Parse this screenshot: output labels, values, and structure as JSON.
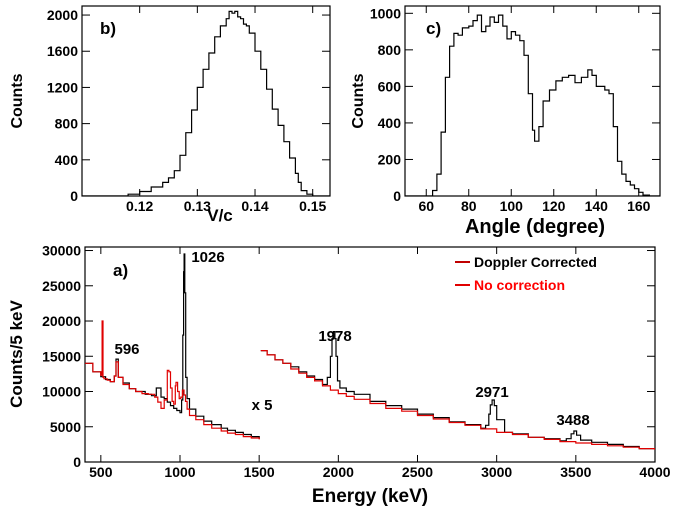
{
  "chart_data": [
    {
      "panel": "b)",
      "type": "line",
      "xlabel": "V/c",
      "ylabel": "Counts",
      "xlim": [
        0.11,
        0.153
      ],
      "ylim": [
        0,
        2100
      ],
      "xticks": [
        "0.12",
        "0.13",
        "0.14",
        "0.15"
      ],
      "yticks": [
        "0",
        "400",
        "800",
        "1200",
        "1600",
        "2000"
      ],
      "series": [
        {
          "color": "#000000",
          "x": [
            0.11,
            0.116,
            0.118,
            0.12,
            0.122,
            0.124,
            0.125,
            0.126,
            0.127,
            0.128,
            0.129,
            0.13,
            0.131,
            0.132,
            0.133,
            0.134,
            0.135,
            0.1355,
            0.136,
            0.1365,
            0.137,
            0.1375,
            0.138,
            0.1385,
            0.139,
            0.14,
            0.141,
            0.142,
            0.143,
            0.144,
            0.145,
            0.146,
            0.147,
            0.1475,
            0.148,
            0.149,
            0.15,
            0.153
          ],
          "y": [
            0,
            0,
            20,
            50,
            100,
            150,
            200,
            280,
            450,
            700,
            950,
            1200,
            1400,
            1580,
            1760,
            1880,
            1960,
            2040,
            2020,
            2040,
            1980,
            1960,
            1900,
            1880,
            1800,
            1600,
            1400,
            1180,
            960,
            780,
            600,
            420,
            250,
            150,
            60,
            20,
            0,
            0
          ]
        }
      ]
    },
    {
      "panel": "c)",
      "type": "line",
      "xlabel": "Angle (degree)",
      "ylabel": "Counts",
      "xlim": [
        50,
        170
      ],
      "ylim": [
        0,
        1040
      ],
      "xticks": [
        "60",
        "80",
        "100",
        "120",
        "140",
        "160"
      ],
      "yticks": [
        "0",
        "200",
        "400",
        "600",
        "800",
        "1000"
      ],
      "series": [
        {
          "color": "#000000",
          "x": [
            50,
            60,
            63,
            65,
            67,
            69,
            71,
            73,
            75,
            77,
            80,
            82,
            84,
            86,
            88,
            90,
            92,
            94,
            96,
            98,
            100,
            102,
            104,
            106,
            108,
            110,
            111,
            113,
            115,
            118,
            121,
            124,
            127,
            130,
            133,
            136,
            138,
            140,
            142,
            144,
            146,
            148,
            150,
            152,
            154,
            156,
            158,
            160,
            162,
            165,
            170
          ],
          "y": [
            0,
            0,
            30,
            120,
            350,
            650,
            820,
            890,
            880,
            920,
            930,
            960,
            990,
            900,
            930,
            980,
            950,
            990,
            930,
            860,
            900,
            880,
            850,
            770,
            560,
            360,
            300,
            380,
            520,
            580,
            630,
            650,
            660,
            620,
            650,
            690,
            660,
            600,
            600,
            580,
            560,
            380,
            190,
            120,
            80,
            60,
            40,
            20,
            5,
            0,
            0
          ]
        }
      ]
    },
    {
      "panel": "a)",
      "type": "line",
      "xlabel": "Energy (keV)",
      "ylabel": "Counts/5 keV",
      "xlim": [
        400,
        4000
      ],
      "ylim": [
        0,
        30500
      ],
      "xticks": [
        "500",
        "1000",
        "1500",
        "2000",
        "2500",
        "3000",
        "3500",
        "4000"
      ],
      "yticks": [
        "0",
        "5000",
        "10000",
        "15000",
        "20000",
        "25000",
        "30000"
      ],
      "legend": [
        "Doppler Corrected",
        "No correction"
      ],
      "annotations": [
        "596",
        "1026",
        "1978",
        "2971",
        "3488",
        "x 5"
      ],
      "series": [
        {
          "color": "#000000",
          "x": [
            400,
            450,
            500,
            530,
            560,
            585,
            596,
            610,
            640,
            680,
            720,
            780,
            820,
            850,
            880,
            900,
            920,
            940,
            960,
            980,
            1000,
            1010,
            1018,
            1023,
            1026,
            1030,
            1036,
            1045,
            1060,
            1100,
            1150,
            1200,
            1260,
            1300,
            1350,
            1400,
            1450,
            1500
          ],
          "y": [
            14000,
            12800,
            12100,
            11700,
            11400,
            12200,
            14600,
            12000,
            11200,
            10400,
            10000,
            9600,
            9400,
            10500,
            9200,
            9000,
            8500,
            8000,
            7600,
            7300,
            7000,
            8800,
            18000,
            27000,
            29500,
            24000,
            12000,
            9000,
            7500,
            6500,
            5800,
            5300,
            4800,
            4500,
            4200,
            3900,
            3600,
            3300
          ]
        },
        {
          "color": "#000000",
          "x": [
            1510,
            1550,
            1600,
            1650,
            1700,
            1750,
            1800,
            1850,
            1900,
            1930,
            1950,
            1960,
            1970,
            1978,
            1985,
            1995,
            2010,
            2050,
            2100,
            2200,
            2300,
            2400,
            2500,
            2600,
            2700,
            2800,
            2900,
            2930,
            2950,
            2960,
            2971,
            2985,
            3000,
            3050,
            3100,
            3200,
            3300,
            3400,
            3440,
            3470,
            3488,
            3505,
            3530,
            3600,
            3700,
            3800,
            3900,
            4000
          ],
          "y": [
            15800,
            15200,
            14500,
            14000,
            13500,
            12800,
            12200,
            11700,
            11000,
            12000,
            15000,
            17500,
            18500,
            17500,
            15000,
            11500,
            10500,
            10000,
            9600,
            8600,
            8000,
            7500,
            6800,
            6300,
            5700,
            5300,
            4800,
            5200,
            6800,
            8100,
            8800,
            8000,
            6000,
            4200,
            4000,
            3500,
            3300,
            3000,
            3300,
            4000,
            4400,
            3800,
            3100,
            2800,
            2500,
            2200,
            1900,
            1700
          ]
        },
        {
          "color": "#e00000",
          "x": [
            400,
            450,
            500,
            508,
            512,
            514,
            520,
            540,
            560,
            585,
            596,
            610,
            640,
            680,
            720,
            760,
            800,
            840,
            860,
            880,
            900,
            920,
            930,
            940,
            950,
            960,
            970,
            975,
            985,
            995,
            1005,
            1015,
            1025,
            1035,
            1045,
            1060,
            1100,
            1150,
            1200,
            1260,
            1300,
            1350,
            1400,
            1450,
            1500
          ],
          "y": [
            14000,
            12800,
            12300,
            20000,
            20000,
            12000,
            11800,
            11600,
            11400,
            12200,
            14200,
            12000,
            11000,
            10400,
            10000,
            9700,
            9600,
            9200,
            8500,
            7600,
            8800,
            13000,
            12800,
            10500,
            8600,
            8200,
            10800,
            11300,
            10000,
            9000,
            9200,
            10200,
            9500,
            8600,
            7500,
            6600,
            6000,
            5300,
            4800,
            4400,
            4100,
            3900,
            3600,
            3400,
            3200
          ]
        },
        {
          "color": "#e00000",
          "x": [
            1510,
            1550,
            1600,
            1650,
            1700,
            1750,
            1800,
            1850,
            1900,
            1950,
            2000,
            2050,
            2100,
            2200,
            2300,
            2400,
            2500,
            2600,
            2700,
            2800,
            2900,
            3000,
            3050,
            3100,
            3200,
            3300,
            3400,
            3500,
            3600,
            3700,
            3800,
            3900,
            4000
          ],
          "y": [
            15800,
            15200,
            14500,
            14000,
            13200,
            12600,
            12000,
            11500,
            10800,
            10200,
            9700,
            9300,
            8900,
            8300,
            7600,
            7200,
            6600,
            6100,
            5600,
            5200,
            4700,
            4200,
            4200,
            3900,
            3500,
            3200,
            2900,
            2700,
            2500,
            2300,
            2100,
            1900,
            1700
          ]
        }
      ]
    }
  ]
}
